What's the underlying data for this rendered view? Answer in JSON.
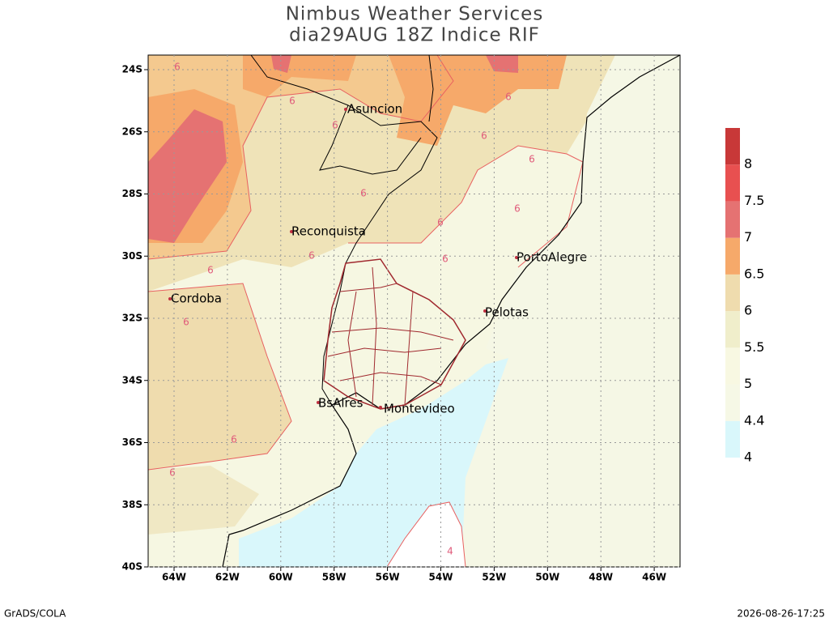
{
  "title": [
    "Nimbus Weather Services",
    "dia29AUG 18Z Indice RIF"
  ],
  "map": {
    "lat_ticks": [
      "24S",
      "26S",
      "28S",
      "30S",
      "32S",
      "34S",
      "36S",
      "38S",
      "40S"
    ],
    "lon_ticks": [
      "64W",
      "62W",
      "60W",
      "58W",
      "56W",
      "54W",
      "52W",
      "50W",
      "48W",
      "46W"
    ],
    "cities": [
      "Asuncion",
      "Reconquista",
      "Cordoba",
      "PortoAlegre",
      "Pelotas",
      "BsAires",
      "Montevideo"
    ],
    "contour_labels": [
      "6",
      "6",
      "6",
      "6",
      "6",
      "6",
      "6",
      "6",
      "6",
      "6",
      "6",
      "6",
      "6",
      "6",
      "6",
      "4"
    ]
  },
  "colorbar": {
    "labels": [
      "4",
      "4.4",
      "5",
      "5.5",
      "6",
      "6.5",
      "7",
      "7.5",
      "8"
    ],
    "colors": [
      "#d9f7fb",
      "#f6f8e6",
      "#f8f8e2",
      "#f0eecb",
      "#efdcae",
      "#f6a96a",
      "#e57272",
      "#e85050",
      "#c83838"
    ]
  },
  "footer": {
    "left": "GrADS/COLA",
    "right": "2026-08-26-17:25"
  }
}
